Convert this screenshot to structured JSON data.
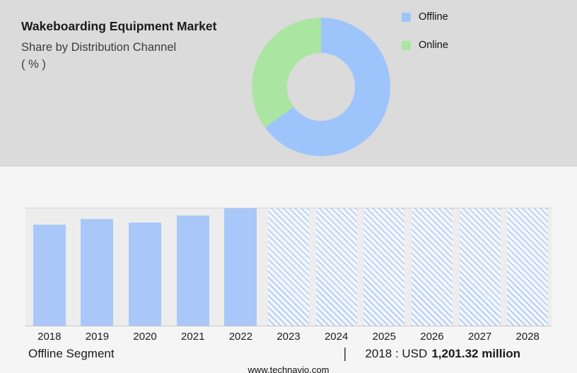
{
  "header": {
    "title": "Wakeboarding Equipment Market",
    "subtitle": "Share by Distribution Channel",
    "unit": "( % )"
  },
  "colors": {
    "panel_gray": "#dbdbdb",
    "offline_blue": "#9ec5fb",
    "online_green": "#abe5a2",
    "bar_blue": "#a9c8f9"
  },
  "footer": {
    "segment_label": "Offline Segment",
    "separator": "|",
    "stat_prefix": "2018 : USD",
    "stat_value": "1,201.32 million",
    "website": "www.technavio.com"
  },
  "chart_data": [
    {
      "type": "pie",
      "donut": true,
      "title": "Share by Distribution Channel ( % )",
      "labels": [
        "Offline",
        "Online"
      ],
      "values": [
        65,
        35
      ],
      "colors": [
        "#9ec5fb",
        "#abe5a2"
      ],
      "legend_position": "right"
    },
    {
      "type": "bar",
      "title": "Offline Segment",
      "categories": [
        "2018",
        "2019",
        "2020",
        "2021",
        "2022",
        "2023",
        "2024",
        "2025",
        "2026",
        "2027",
        "2028"
      ],
      "values": [
        86,
        91,
        88,
        94,
        100,
        100,
        100,
        100,
        100,
        100,
        100
      ],
      "forecast_from": "2023",
      "bar_color": "#a9c8f9",
      "ylim": [
        0,
        100
      ],
      "xlabel": "",
      "ylabel": "",
      "grid": false,
      "annotation": "2018 : USD 1,201.32 million"
    }
  ]
}
